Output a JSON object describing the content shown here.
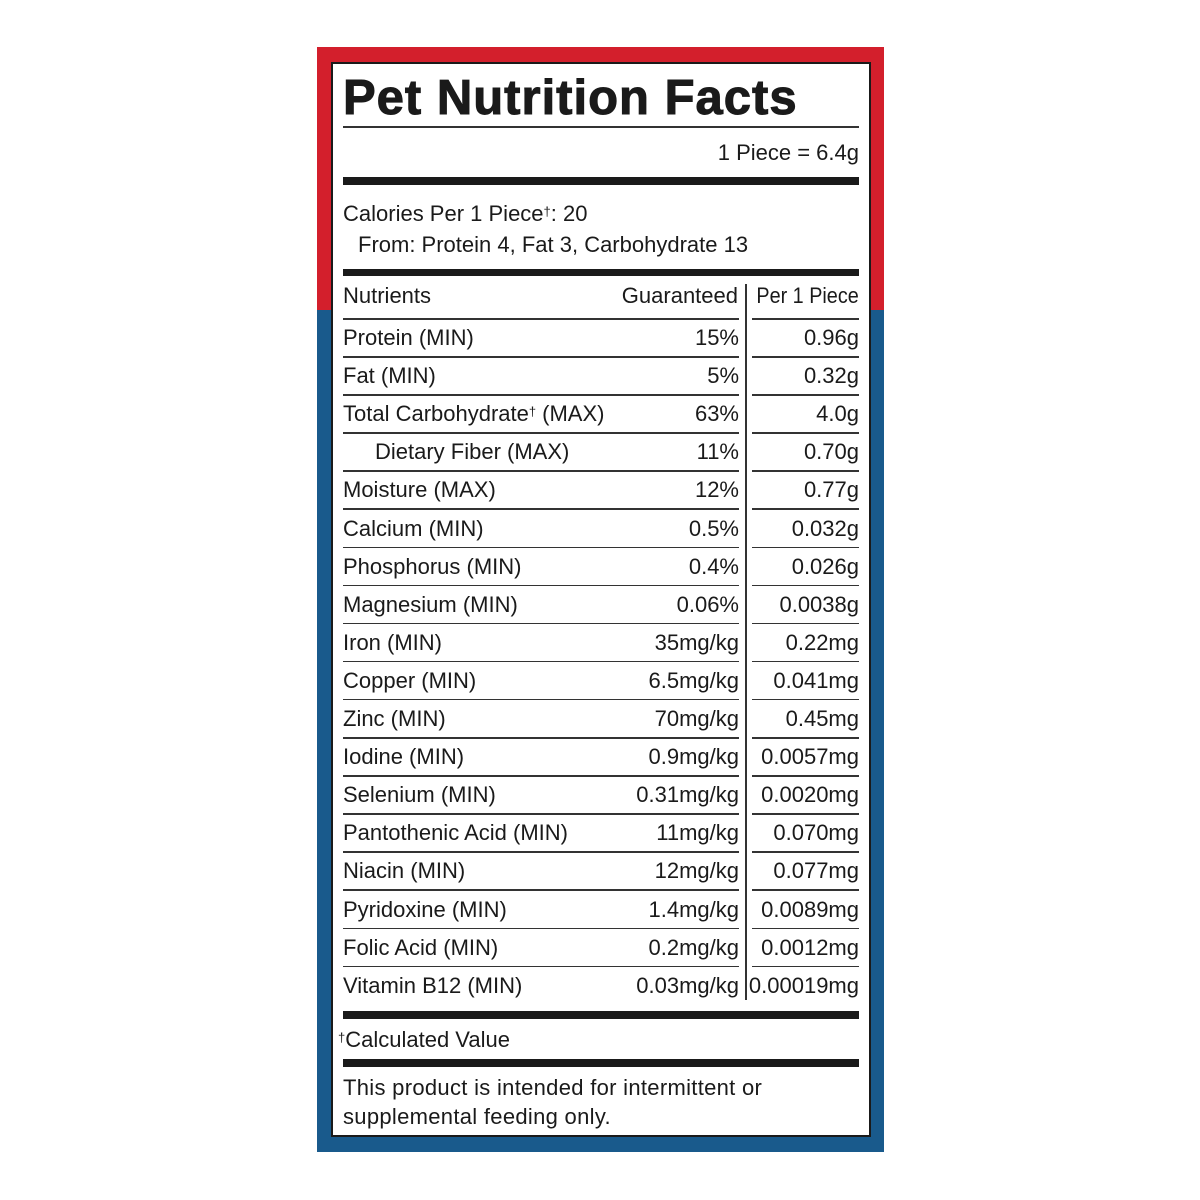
{
  "label": {
    "title": "Pet Nutrition Facts",
    "serving": "1 Piece = 6.4g",
    "calories": {
      "text": "Calories Per 1 Piece",
      "sup": "†",
      "value": ": 20"
    },
    "calories_from": "From: Protein 4, Fat 3, Carbohydrate 13",
    "header": {
      "nutrients": "Nutrients",
      "guaranteed": "Guaranteed",
      "per_piece": "Per 1 Piece"
    },
    "rows": [
      {
        "name": "Protein (MIN)",
        "guaranteed": "15%",
        "per_piece": "0.96g"
      },
      {
        "name": "Fat (MIN)",
        "guaranteed": "5%",
        "per_piece": "0.32g"
      },
      {
        "name": "Total Carbohydrate",
        "sup": "†",
        "suffix": "(MAX)",
        "guaranteed": "63%",
        "per_piece": "4.0g"
      },
      {
        "name": "Dietary Fiber (MAX)",
        "indent": true,
        "guaranteed": "11%",
        "per_piece": "0.70g"
      },
      {
        "name": "Moisture (MAX)",
        "guaranteed": "12%",
        "per_piece": "0.77g"
      },
      {
        "name": "Calcium (MIN)",
        "guaranteed": "0.5%",
        "per_piece": "0.032g"
      },
      {
        "name": "Phosphorus (MIN)",
        "guaranteed": "0.4%",
        "per_piece": "0.026g"
      },
      {
        "name": "Magnesium (MIN)",
        "guaranteed": "0.06%",
        "per_piece": "0.0038g"
      },
      {
        "name": "Iron (MIN)",
        "guaranteed": "35mg/kg",
        "per_piece": "0.22mg"
      },
      {
        "name": "Copper (MIN)",
        "guaranteed": "6.5mg/kg",
        "per_piece": "0.041mg"
      },
      {
        "name": "Zinc (MIN)",
        "guaranteed": "70mg/kg",
        "per_piece": "0.45mg"
      },
      {
        "name": "Iodine (MIN)",
        "guaranteed": "0.9mg/kg",
        "per_piece": "0.0057mg"
      },
      {
        "name": "Selenium (MIN)",
        "guaranteed": "0.31mg/kg",
        "per_piece": "0.0020mg"
      },
      {
        "name": "Pantothenic Acid (MIN)",
        "guaranteed": "11mg/kg",
        "per_piece": "0.070mg"
      },
      {
        "name": "Niacin (MIN)",
        "guaranteed": "12mg/kg",
        "per_piece": "0.077mg"
      },
      {
        "name": "Pyridoxine (MIN)",
        "guaranteed": "1.4mg/kg",
        "per_piece": "0.0089mg"
      },
      {
        "name": "Folic Acid (MIN)",
        "guaranteed": "0.2mg/kg",
        "per_piece": "0.0012mg"
      },
      {
        "name": "Vitamin B12 (MIN)",
        "guaranteed": "0.03mg/kg",
        "per_piece": "0.00019mg"
      }
    ],
    "footnote": {
      "sup": "†",
      "text": "Calculated Value"
    },
    "note": [
      "This product is intended for intermittent or",
      "supplemental feeding only."
    ]
  }
}
